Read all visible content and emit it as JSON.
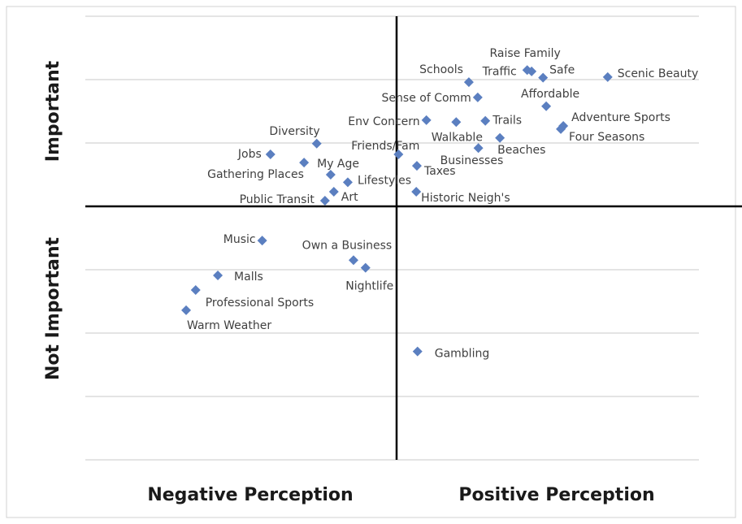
{
  "chart_data": {
    "type": "scatter",
    "x_axis_labels": [
      "Negative Perception",
      "Positive Perception"
    ],
    "y_axis_labels": [
      "Important",
      "Not Important"
    ],
    "point_labels": [
      "Raise Family",
      "Safe",
      "Scenic Beauty",
      "Schools",
      "Traffic",
      "Sense of Comm",
      "Affordable",
      "Env Concern",
      "Walkable",
      "Trails",
      "Adventure Sports",
      "Four Seasons",
      "Beaches",
      "Diversity",
      "Businesses",
      "Jobs",
      "Friends/Fam",
      "My Age",
      "Taxes",
      "Gathering Places",
      "Lifestyles",
      "Art",
      "Historic Neigh's",
      "Public Transit",
      "Music",
      "Own a Business",
      "Nightlife",
      "Malls",
      "Professional Sports",
      "Warm Weather",
      "Gambling"
    ],
    "x": [
      2.13,
      2.31,
      3.33,
      1.14,
      2.06,
      1.28,
      2.36,
      0.47,
      0.94,
      1.4,
      2.63,
      2.59,
      1.63,
      -1.26,
      1.29,
      -1.99,
      0.03,
      -1.46,
      0.32,
      -1.04,
      -0.77,
      -0.99,
      0.31,
      -1.13,
      -2.12,
      -0.68,
      -0.49,
      -2.82,
      -3.17,
      -3.32,
      0.33
    ],
    "values": [
      2.13,
      2.03,
      2.04,
      1.96,
      2.15,
      1.72,
      1.58,
      1.36,
      1.33,
      1.35,
      1.27,
      1.22,
      1.08,
      0.99,
      0.92,
      0.82,
      0.82,
      0.69,
      0.64,
      0.5,
      0.38,
      0.23,
      0.23,
      0.09,
      -0.54,
      -0.85,
      -0.97,
      -1.09,
      -1.32,
      -1.64,
      -2.29
    ],
    "color": "#5b7fc0",
    "xlim": [
      -5,
      5
    ],
    "ylim": [
      -4,
      3
    ],
    "yticks": [
      -4,
      -3,
      -2,
      -1,
      0,
      1,
      2,
      3
    ],
    "grid": true
  }
}
